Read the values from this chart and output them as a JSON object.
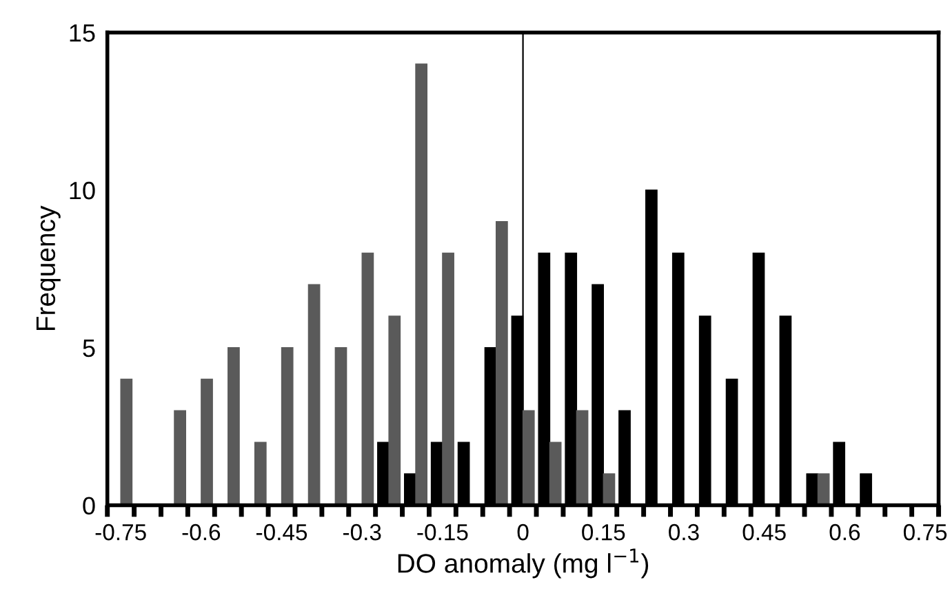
{
  "chart_data": {
    "type": "histogram",
    "xlabel": "DO anomaly (mg l$^{−1}$)",
    "ylabel": "Frequency",
    "bins": [
      -0.775,
      -0.725,
      -0.675,
      -0.625,
      -0.575,
      -0.525,
      -0.475,
      -0.425,
      -0.375,
      -0.325,
      -0.275,
      -0.225,
      -0.175,
      -0.125,
      -0.075,
      -0.025,
      0.025,
      0.075,
      0.125,
      0.175,
      0.225,
      0.275,
      0.325,
      0.375,
      0.425,
      0.475,
      0.525,
      0.575,
      0.625,
      0.675,
      0.725,
      0.775
    ],
    "series": [
      {
        "color": "#000000",
        "values": [
          0,
          0,
          0,
          0,
          0,
          0,
          0,
          0,
          0,
          0,
          2,
          1,
          2,
          2,
          5,
          6,
          8,
          8,
          7,
          3,
          10,
          8,
          6,
          4,
          8,
          6,
          1,
          2,
          1,
          0,
          0
        ]
      },
      {
        "color": "#5a5a5a",
        "values": [
          4,
          0,
          3,
          4,
          5,
          2,
          5,
          7,
          5,
          8,
          6,
          14,
          8,
          0,
          9,
          3,
          2,
          3,
          1,
          0,
          0,
          0,
          0,
          0,
          0,
          0,
          1,
          0,
          0,
          0,
          0
        ]
      }
    ],
    "xlim": [
      -0.775,
      0.775
    ],
    "ylim": [
      0,
      15
    ],
    "yticks": [
      0,
      5,
      10,
      15
    ],
    "xticks": [
      {
        "value": -0.775,
        "label": null
      },
      {
        "value": -0.725,
        "label": null
      },
      {
        "value": -0.675,
        "label": null
      },
      {
        "value": -0.625,
        "label": null
      },
      {
        "value": -0.575,
        "label": null
      },
      {
        "value": -0.525,
        "label": null
      },
      {
        "value": -0.475,
        "label": null
      },
      {
        "value": -0.425,
        "label": null
      },
      {
        "value": -0.375,
        "label": null
      },
      {
        "value": -0.325,
        "label": null
      },
      {
        "value": -0.275,
        "label": null
      },
      {
        "value": -0.225,
        "label": null
      },
      {
        "value": -0.175,
        "label": null
      },
      {
        "value": -0.125,
        "label": null
      },
      {
        "value": -0.075,
        "label": null
      },
      {
        "value": -0.025,
        "label": null
      },
      {
        "value": 0.025,
        "label": null
      },
      {
        "value": 0.075,
        "label": null
      },
      {
        "value": 0.125,
        "label": null
      },
      {
        "value": 0.175,
        "label": null
      },
      {
        "value": 0.225,
        "label": null
      },
      {
        "value": 0.275,
        "label": null
      },
      {
        "value": 0.325,
        "label": null
      },
      {
        "value": 0.375,
        "label": null
      },
      {
        "value": 0.425,
        "label": null
      },
      {
        "value": 0.475,
        "label": null
      },
      {
        "value": 0.525,
        "label": null
      },
      {
        "value": 0.575,
        "label": null
      },
      {
        "value": 0.625,
        "label": null
      },
      {
        "value": 0.675,
        "label": null
      },
      {
        "value": 0.725,
        "label": null
      },
      {
        "value": 0.775,
        "label": null
      },
      {
        "value": -0.75,
        "label": "-0.75"
      },
      {
        "value": -0.6,
        "label": "-0.6"
      },
      {
        "value": -0.45,
        "label": "-0.45"
      },
      {
        "value": -0.3,
        "label": "-0.3"
      },
      {
        "value": -0.15,
        "label": "-0.15"
      },
      {
        "value": 0,
        "label": "0"
      },
      {
        "value": 0.15,
        "label": "0.15"
      },
      {
        "value": 0.3,
        "label": "0.3"
      },
      {
        "value": 0.45,
        "label": "0.45"
      },
      {
        "value": 0.6,
        "label": "0.6"
      },
      {
        "value": 0.75,
        "label": "0.75"
      }
    ],
    "ref_lines": [
      {
        "axis": "x",
        "value": 0,
        "label": null,
        "color": "#000000"
      }
    ],
    "grid": false,
    "legend": false
  }
}
